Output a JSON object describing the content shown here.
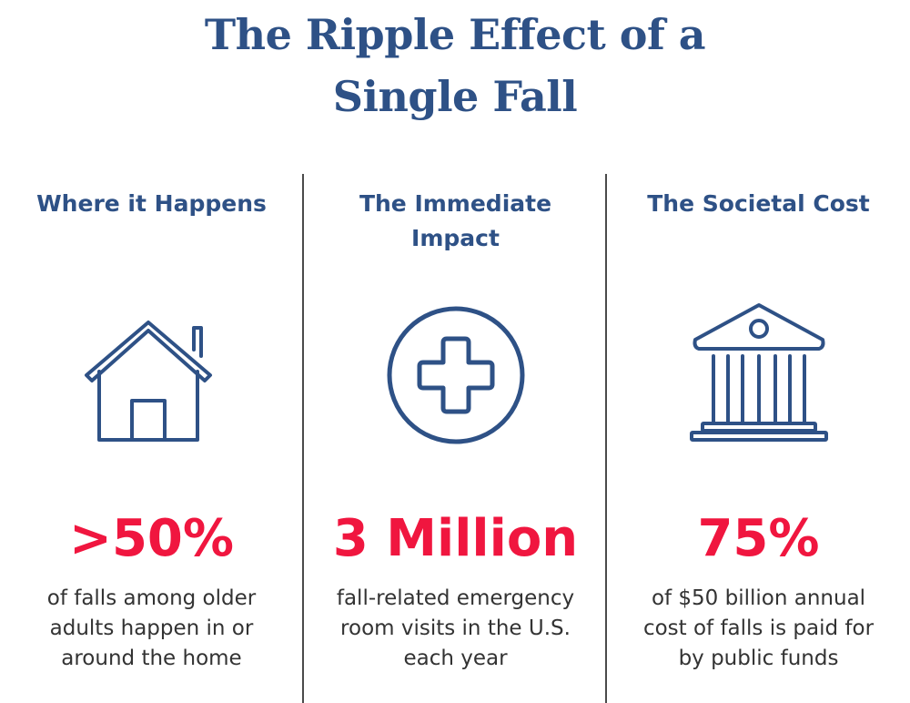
{
  "title": {
    "line1": "The Ripple Effect of a",
    "line2": "Single Fall"
  },
  "colors": {
    "title": "#2e5186",
    "heading": "#2e5186",
    "icon": "#2e5186",
    "stat": "#f0163f",
    "body_text": "#333333",
    "divider": "#4a4a4a"
  },
  "columns": [
    {
      "heading": [
        "Where it Happens"
      ],
      "icon": "house-icon",
      "stat": ">50%",
      "description": [
        "of falls among older",
        "adults happen in or",
        "around the home"
      ]
    },
    {
      "heading": [
        "The Immediate",
        "Impact"
      ],
      "icon": "medical-cross-icon",
      "stat": "3 Million",
      "description": [
        "fall-related emergency",
        "room visits in the U.S.",
        "each year"
      ]
    },
    {
      "heading": [
        "The Societal Cost"
      ],
      "icon": "government-building-icon",
      "stat": "75%",
      "description": [
        "of $50 billion annual",
        "cost of falls is paid for",
        "by public funds"
      ]
    }
  ]
}
